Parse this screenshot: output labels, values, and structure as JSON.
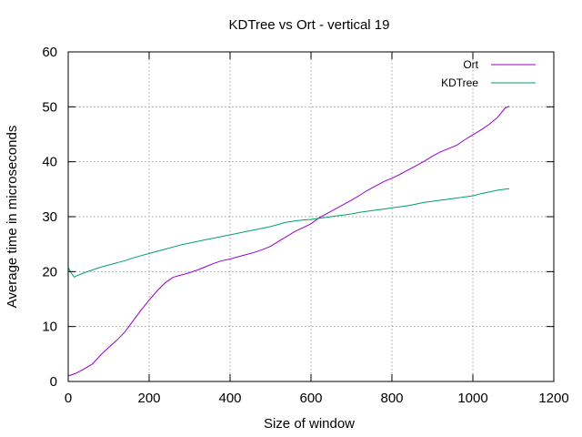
{
  "chart_data": {
    "type": "line",
    "title": "KDTree vs Ort - vertical 19",
    "xlabel": "Size of window",
    "ylabel": "Average time in microseconds",
    "xlim": [
      0,
      1200
    ],
    "ylim": [
      0,
      60
    ],
    "xticks": [
      0,
      200,
      400,
      600,
      800,
      1000,
      1200
    ],
    "yticks": [
      0,
      10,
      20,
      30,
      40,
      50,
      60
    ],
    "grid": true,
    "legend_position": "top-right",
    "series": [
      {
        "name": "Ort",
        "color": "#9400d3",
        "x": [
          0,
          20,
          40,
          60,
          80,
          100,
          120,
          140,
          160,
          180,
          200,
          220,
          240,
          260,
          280,
          300,
          320,
          340,
          360,
          380,
          400,
          420,
          440,
          460,
          480,
          500,
          520,
          540,
          560,
          580,
          600,
          620,
          640,
          660,
          680,
          700,
          720,
          740,
          760,
          780,
          800,
          820,
          840,
          860,
          880,
          900,
          920,
          940,
          960,
          980,
          1000,
          1020,
          1040,
          1060,
          1080,
          1090
        ],
        "y": [
          1.0,
          1.5,
          2.3,
          3.2,
          4.8,
          6.2,
          7.5,
          9.0,
          11.0,
          13.0,
          14.8,
          16.5,
          18.0,
          19.0,
          19.4,
          19.8,
          20.3,
          20.9,
          21.5,
          22.0,
          22.3,
          22.7,
          23.1,
          23.5,
          24.0,
          24.6,
          25.5,
          26.4,
          27.3,
          28.0,
          28.7,
          29.8,
          30.6,
          31.4,
          32.2,
          33.0,
          33.9,
          34.8,
          35.6,
          36.4,
          37.0,
          37.7,
          38.5,
          39.3,
          40.1,
          41.0,
          41.8,
          42.4,
          43.0,
          44.0,
          44.9,
          45.8,
          46.8,
          48.0,
          49.8,
          50.1
        ]
      },
      {
        "name": "KDTree",
        "color": "#009e73",
        "x": [
          0,
          5,
          10,
          15,
          20,
          30,
          40,
          60,
          80,
          100,
          120,
          140,
          160,
          180,
          200,
          220,
          240,
          260,
          280,
          300,
          320,
          340,
          360,
          380,
          400,
          420,
          440,
          460,
          480,
          500,
          520,
          540,
          560,
          580,
          600,
          620,
          640,
          660,
          680,
          700,
          720,
          740,
          760,
          780,
          800,
          820,
          840,
          860,
          880,
          900,
          920,
          940,
          960,
          980,
          1000,
          1020,
          1040,
          1060,
          1080,
          1090
        ],
        "y": [
          20.8,
          20.0,
          19.5,
          19.0,
          19.2,
          19.5,
          19.8,
          20.3,
          20.8,
          21.2,
          21.6,
          22.0,
          22.5,
          22.9,
          23.3,
          23.7,
          24.1,
          24.5,
          24.9,
          25.2,
          25.5,
          25.8,
          26.1,
          26.4,
          26.7,
          27.0,
          27.3,
          27.6,
          27.9,
          28.2,
          28.6,
          29.0,
          29.2,
          29.4,
          29.5,
          29.7,
          29.9,
          30.1,
          30.3,
          30.5,
          30.8,
          31.0,
          31.2,
          31.4,
          31.6,
          31.8,
          32.0,
          32.3,
          32.6,
          32.8,
          33.0,
          33.2,
          33.4,
          33.6,
          33.8,
          34.2,
          34.5,
          34.8,
          35.0,
          35.1
        ]
      }
    ]
  }
}
